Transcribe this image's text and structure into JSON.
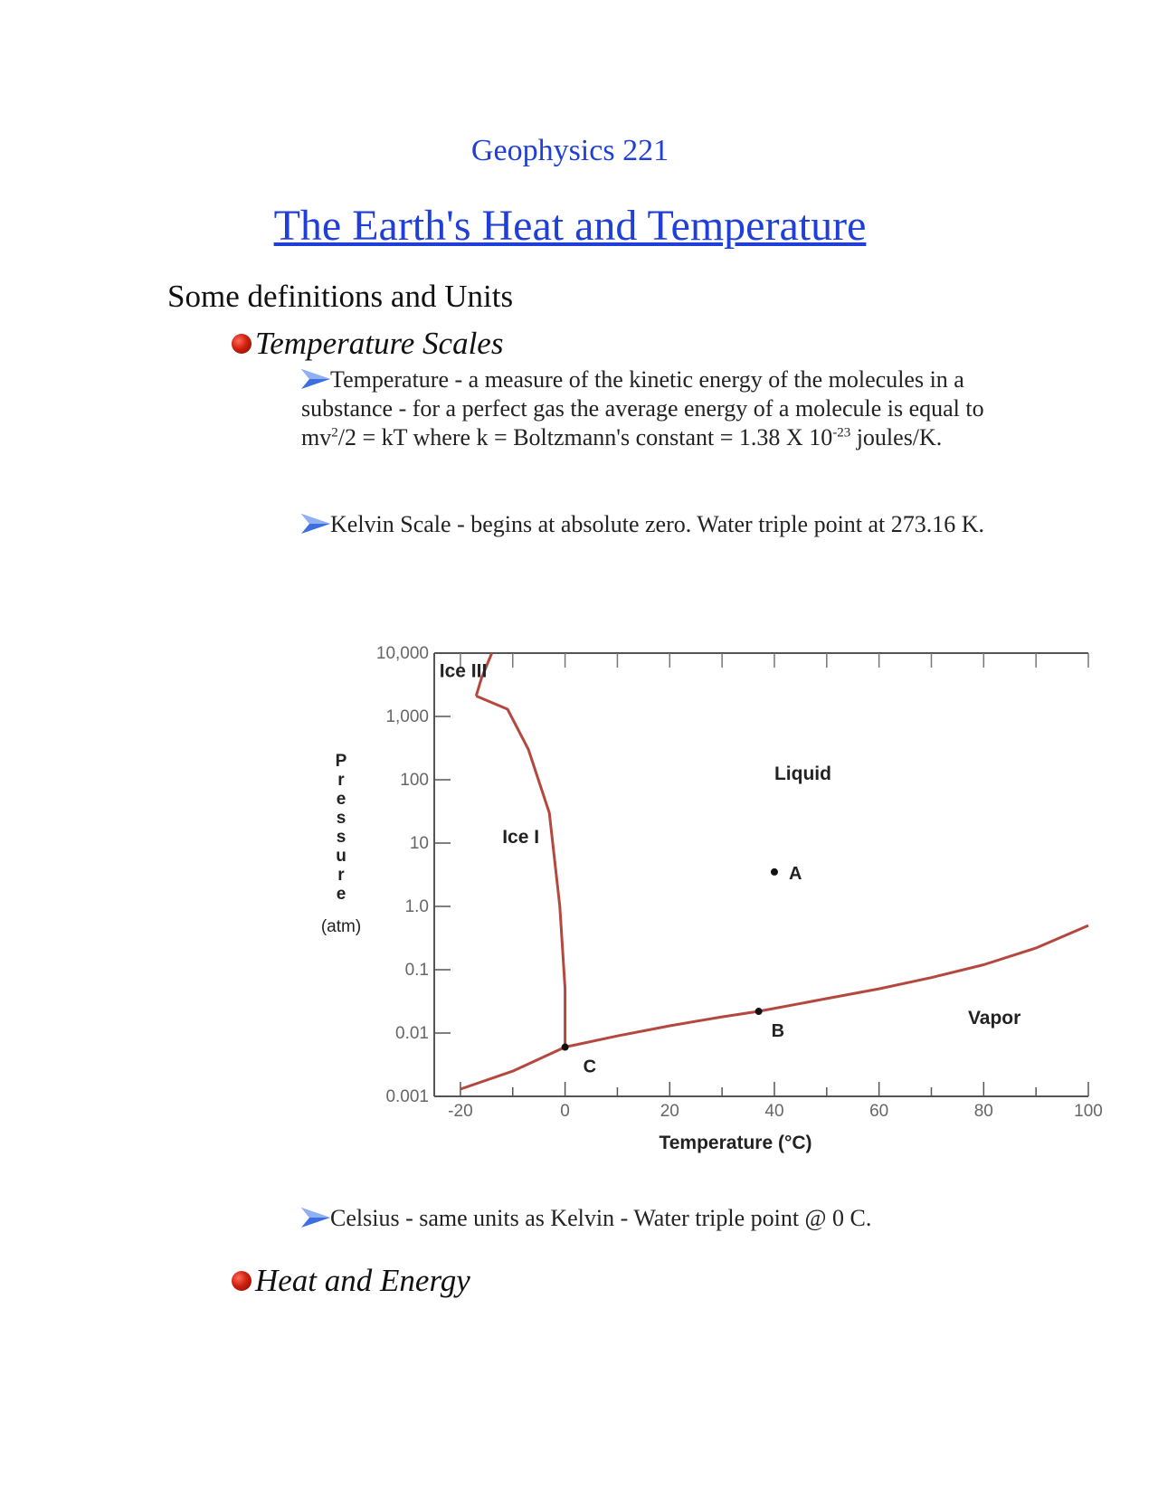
{
  "header": {
    "course": "Geophysics 221",
    "title": "The Earth's Heat and Temperature"
  },
  "section_heading": "Some definitions and Units",
  "bullets": {
    "temperature_scales": "Temperature Scales",
    "heat_and_energy": "Heat and Energy"
  },
  "paragraphs": {
    "temperature_def": {
      "text1": "Temperature - a measure of the kinetic energy of the molecules in a substance - for a perfect gas the average energy of a molecule is equal to mv",
      "sup1": "2",
      "text2": "/2 = kT where k = Boltzmann's constant = 1.38 X 10",
      "sup2": "-23",
      "text3": " joules/K."
    },
    "kelvin": "Kelvin Scale - begins at absolute zero. Water triple point at 273.16 K.",
    "celsius": "Celsius - same units as Kelvin - Water triple point @ 0 C."
  },
  "chart_data": {
    "type": "line",
    "title": "",
    "xlabel": "Temperature (°C)",
    "ylabel": "Pressure (atm)",
    "ylabel_letters": [
      "P",
      "r",
      "e",
      "s",
      "s",
      "u",
      "r",
      "e"
    ],
    "ylabel_unit": "(atm)",
    "xlim": [
      -25,
      100
    ],
    "ylim": [
      0.001,
      10000
    ],
    "y_scale": "log",
    "x_tick_labels": [
      "-20",
      "0",
      "20",
      "40",
      "60",
      "80",
      "100"
    ],
    "x_tick_values": [
      -20,
      0,
      20,
      40,
      60,
      80,
      100
    ],
    "y_tick_labels": [
      "0.001",
      "0.01",
      "0.1",
      "1.0",
      "10",
      "100",
      "1,000",
      "10,000"
    ],
    "y_tick_values": [
      0.001,
      0.01,
      0.1,
      1,
      10,
      100,
      1000,
      10000
    ],
    "series": [
      {
        "values": [
          [
            -20,
            0.0013
          ],
          [
            -10,
            0.0025
          ],
          [
            0,
            0.006
          ]
        ],
        "color": "#b5483e"
      },
      {
        "values": [
          [
            0,
            0.006
          ],
          [
            10,
            0.009
          ],
          [
            20,
            0.013
          ],
          [
            30,
            0.018
          ],
          [
            37,
            0.022
          ],
          [
            50,
            0.035
          ],
          [
            60,
            0.05
          ],
          [
            70,
            0.075
          ],
          [
            80,
            0.12
          ],
          [
            90,
            0.22
          ],
          [
            100,
            0.5
          ]
        ],
        "color": "#b5483e"
      },
      {
        "values": [
          [
            0,
            0.006
          ],
          [
            0,
            0.05
          ],
          [
            -1,
            1.0
          ],
          [
            -3,
            30
          ],
          [
            -7,
            300
          ],
          [
            -11,
            1300
          ],
          [
            -17,
            2100
          ]
        ],
        "color": "#b5483e"
      },
      {
        "values": [
          [
            -17,
            2100
          ],
          [
            -16,
            4000
          ],
          [
            -14,
            10000
          ]
        ],
        "color": "#b5483e"
      }
    ],
    "regions": [
      {
        "label": "Ice III",
        "x": -24,
        "y": 4200
      },
      {
        "label": "Ice I",
        "x": -12,
        "y": 10
      },
      {
        "label": "Liquid",
        "x": 40,
        "y": 100
      },
      {
        "label": "Vapor",
        "x": 77,
        "y": 0.014
      }
    ],
    "points": [
      {
        "label": "A",
        "x": 40,
        "y": 3.5
      },
      {
        "label": "B",
        "x": 37,
        "y": 0.022
      },
      {
        "label": "C",
        "x": 0,
        "y": 0.006
      }
    ]
  }
}
